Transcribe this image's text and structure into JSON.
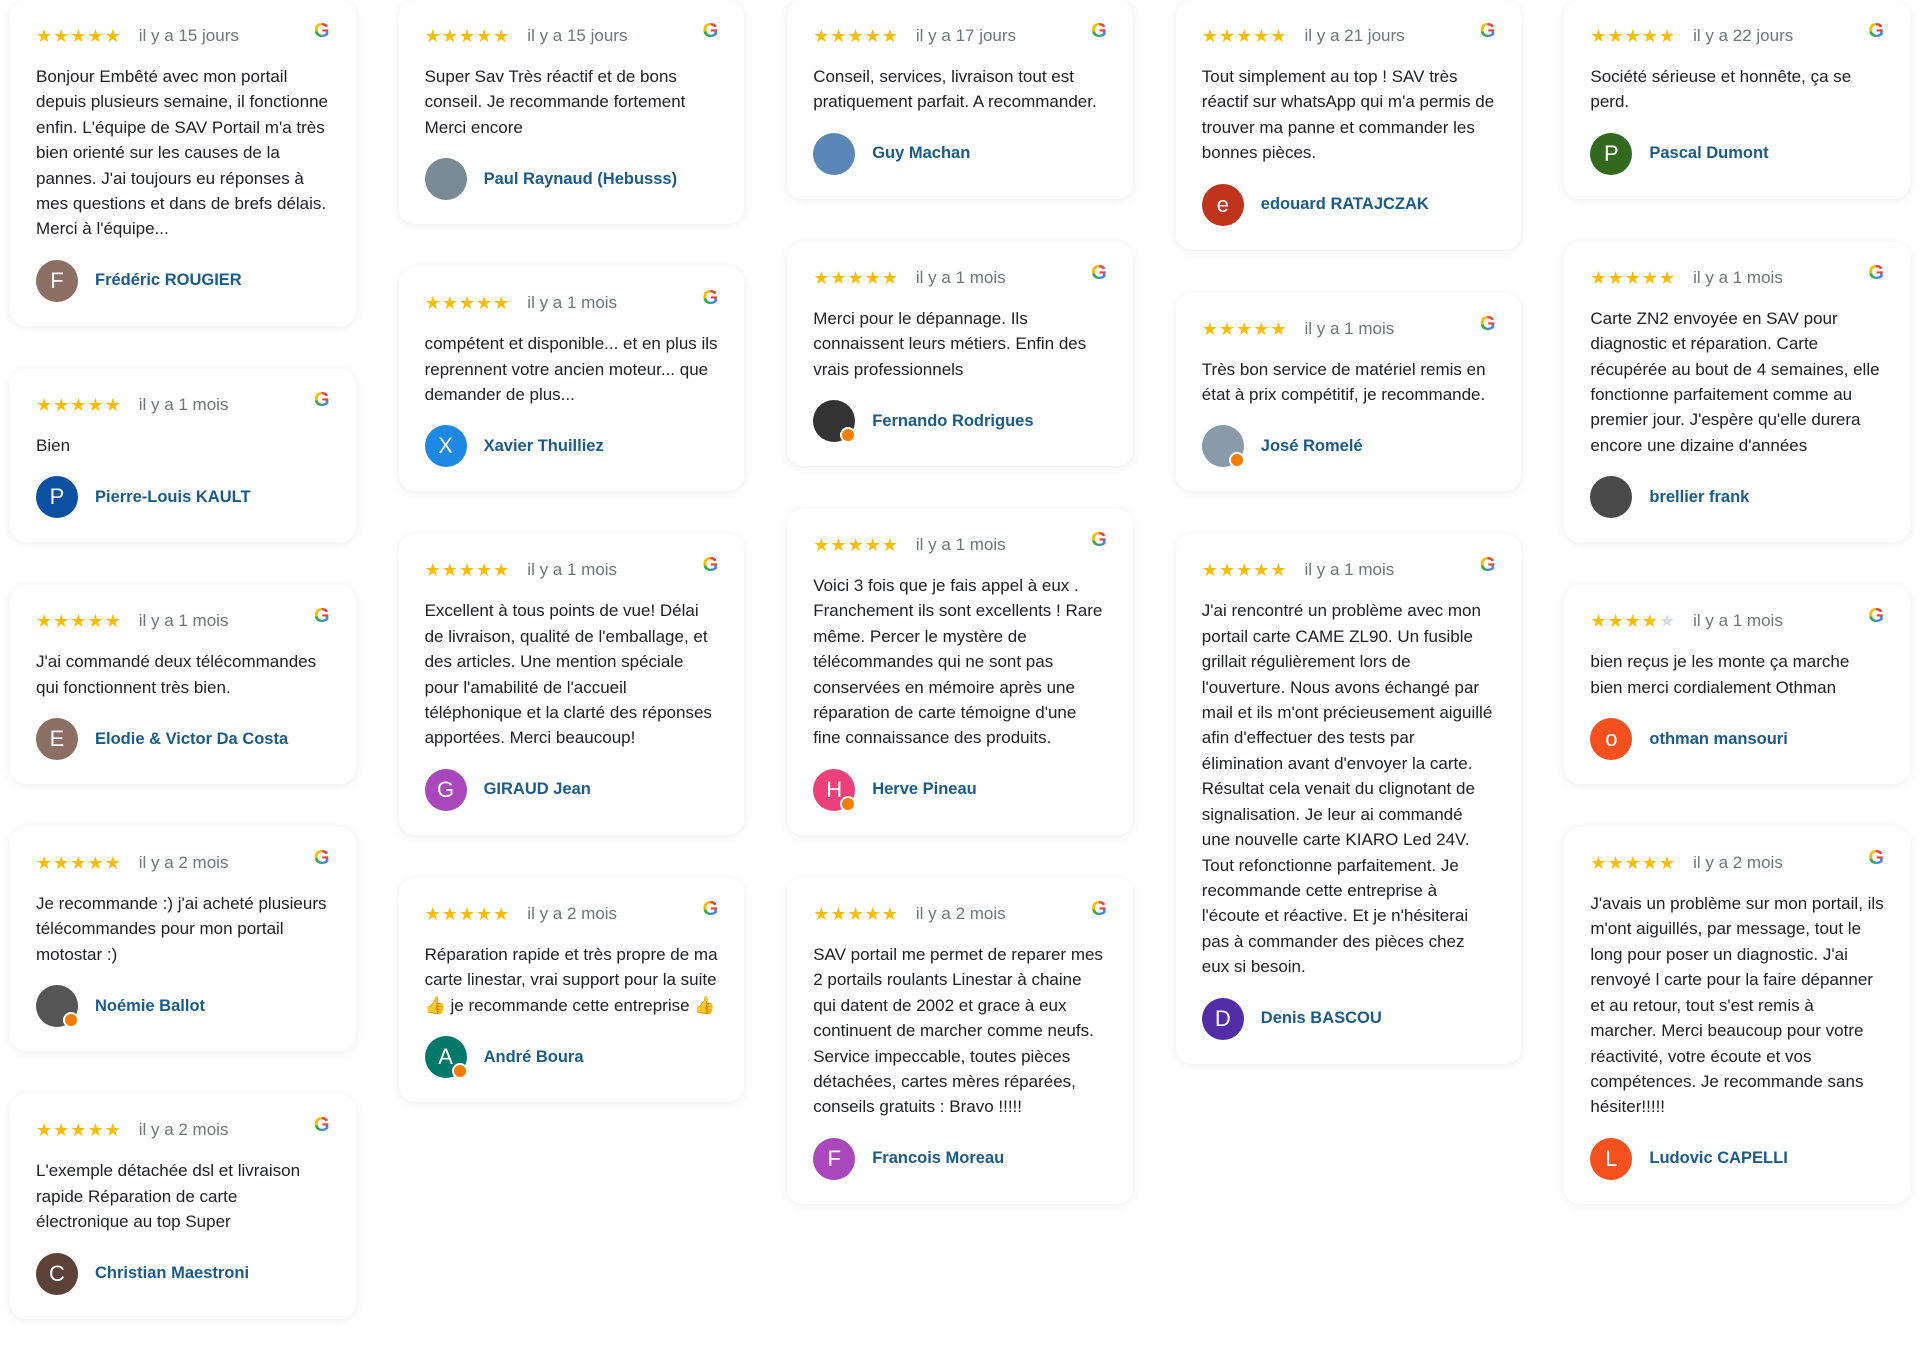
{
  "colors": {
    "star": "#fbbc04",
    "name": "#1a5b8c",
    "date": "#70757a"
  },
  "columns": [
    [
      {
        "stars": 5,
        "date": "il y a 15 jours",
        "text": "Bonjour Embêté avec mon portail depuis plusieurs semaine, il fonctionne enfin. L'équipe de SAV Portail m'a très bien orienté sur les causes de la pannes. J'ai toujours eu réponses à mes questions et dans de brefs délais. Merci à l'équipe...",
        "name": "Frédéric ROUGIER",
        "initial": "F",
        "avatar_color": "#8d6e63"
      },
      {
        "stars": 5,
        "date": "il y a 1 mois",
        "text": "Bien",
        "name": "Pierre-Louis KAULT",
        "initial": "P",
        "avatar_color": "#0d4fa0"
      },
      {
        "stars": 5,
        "date": "il y a 1 mois",
        "text": "J'ai commandé deux télécommandes qui fonctionnent très bien.",
        "name": "Elodie & Victor Da Costa",
        "initial": "E",
        "avatar_color": "#8d6e63"
      },
      {
        "stars": 5,
        "date": "il y a 2 mois",
        "text": "Je recommande :) j'ai acheté plusieurs télécommandes pour mon portail motostar :)",
        "name": "Noémie Ballot",
        "initial": "",
        "avatar_color": "#555555",
        "badge": true
      },
      {
        "stars": 5,
        "date": "il y a 2 mois",
        "text": "L'exemple détachée dsl et livraison rapide Réparation de carte électronique au top Super",
        "name": "Christian Maestroni",
        "initial": "C",
        "avatar_color": "#5d4037"
      }
    ],
    [
      {
        "stars": 5,
        "date": "il y a 15 jours",
        "text": "Super Sav Très réactif et de bons conseil. Je recommande fortement Merci encore",
        "name": "Paul Raynaud (Hebusss)",
        "initial": "",
        "avatar_color": "#7a8a94"
      },
      {
        "stars": 5,
        "date": "il y a 1 mois",
        "text": "compétent et disponible... et en plus ils reprennent votre ancien moteur... que demander de plus...",
        "name": "Xavier Thuilliez",
        "initial": "X",
        "avatar_color": "#1e88e5"
      },
      {
        "stars": 5,
        "date": "il y a 1 mois",
        "text": "Excellent à tous points de vue! Délai de livraison, qualité de l'emballage, et des articles. Une mention spéciale pour l'amabilité de l'accueil téléphonique et la clarté des réponses apportées. Merci beaucoup!",
        "name": "GIRAUD Jean",
        "initial": "G",
        "avatar_color": "#ab47bc"
      },
      {
        "stars": 5,
        "date": "il y a 2 mois",
        "text": "Réparation rapide et très propre de ma carte linestar, vrai support pour la suite 👍 je recommande cette entreprise 👍",
        "name": "André Boura",
        "initial": "A",
        "avatar_color": "#00796b",
        "badge": true
      }
    ],
    [
      {
        "stars": 5,
        "date": "il y a 17 jours",
        "text": "Conseil, services, livraison tout est pratiquement parfait. A recommander.",
        "name": "Guy Machan",
        "initial": "",
        "avatar_color": "#5b87b8"
      },
      {
        "stars": 5,
        "date": "il y a 1 mois",
        "text": "Merci pour le dépannage. Ils connaissent leurs métiers. Enfin des vrais professionnels",
        "name": "Fernando Rodrigues",
        "initial": "",
        "avatar_color": "#333333",
        "badge": true
      },
      {
        "stars": 5,
        "date": "il y a 1 mois",
        "text": "Voici 3 fois que je fais appel à eux . Franchement ils sont excellents ! Rare même. Percer le mystère de télécommandes qui ne sont pas conservées en mémoire après une réparation de carte témoigne d'une fine connaissance des produits.",
        "name": "Herve Pineau",
        "initial": "H",
        "avatar_color": "#ec407a",
        "badge": true
      },
      {
        "stars": 5,
        "date": "il y a 2 mois",
        "text": "SAV portail me permet de reparer mes 2 portails roulants Linestar à chaine qui datent de 2002 et grace à eux continuent de marcher comme neufs. Service impeccable, toutes pièces détachées, cartes mères réparées, conseils gratuits : Bravo !!!!!",
        "name": "Francois Moreau",
        "initial": "F",
        "avatar_color": "#ab47bc"
      }
    ],
    [
      {
        "stars": 5,
        "date": "il y a 21 jours",
        "text": "Tout simplement au top ! SAV très réactif sur whatsApp qui m'a permis de trouver ma panne et commander les bonnes pièces.",
        "name": "edouard RATAJCZAK",
        "initial": "e",
        "avatar_color": "#c0341d"
      },
      {
        "stars": 5,
        "date": "il y a 1 mois",
        "text": "Très bon service de matériel remis en état à prix compétitif, je recommande.",
        "name": "José Romelé",
        "initial": "",
        "avatar_color": "#8a9aa8",
        "badge": true
      },
      {
        "stars": 5,
        "date": "il y a 1 mois",
        "text": "J'ai rencontré un problème avec mon portail carte CAME ZL90. Un fusible grillait régulièrement lors de l'ouverture. Nous avons échangé par mail et ils m'ont précieusement aiguillé afin d'effectuer des tests par élimination avant d'envoyer la carte. Résultat cela venait du clignotant de signalisation. Je leur ai commandé une nouvelle carte KIARO Led 24V. Tout refonctionne parfaitement. Je recommande cette entreprise à l'écoute et réactive. Et je n'hésiterai pas à commander des pièces chez eux si besoin.",
        "name": "Denis BASCOU",
        "initial": "D",
        "avatar_color": "#512da8"
      }
    ],
    [
      {
        "stars": 5,
        "date": "il y a 22 jours",
        "text": "Société sérieuse et honnête, ça se perd.",
        "name": "Pascal Dumont",
        "initial": "P",
        "avatar_color": "#33691e"
      },
      {
        "stars": 5,
        "date": "il y a 1 mois",
        "text": "Carte ZN2 envoyée en SAV pour diagnostic et réparation. Carte récupérée au bout de 4 semaines, elle fonctionne parfaitement comme au premier jour. J'espère qu'elle durera encore une dizaine d'années",
        "name": "brellier frank",
        "initial": "",
        "avatar_color": "#4a4a4a"
      },
      {
        "stars": 4,
        "date": "il y a 1 mois",
        "text": "bien reçus je les monte ça marche bien merci cordialement Othman",
        "name": "othman mansouri",
        "initial": "o",
        "avatar_color": "#f4511e"
      },
      {
        "stars": 5,
        "date": "il y a 2 mois",
        "text": "J'avais un problème sur mon portail, ils m'ont aiguillés, par message, tout le long pour poser un diagnostic. J'ai renvoyé l carte pour la faire dépanner et au retour, tout s'est remis à marcher. Merci beaucoup pour votre réactivité, votre écoute et vos compétences. Je recommande sans hésiter!!!!!",
        "name": "Ludovic CAPELLI",
        "initial": "L",
        "avatar_color": "#f4511e"
      }
    ]
  ]
}
